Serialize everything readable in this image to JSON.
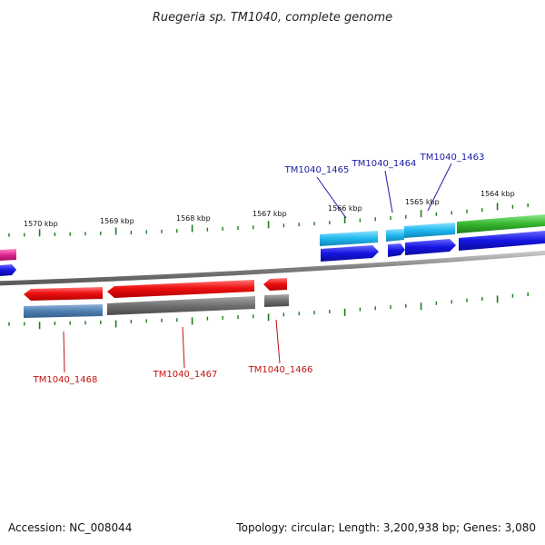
{
  "title": "Ruegeria sp. TM1040, complete genome",
  "scale_labels": [
    "1570 kbp",
    "1569 kbp",
    "1568 kbp",
    "1567 kbp",
    "1566 kbp",
    "1565 kbp",
    "1564 kbp"
  ],
  "top_gene_labels": [
    "TM1040_1465",
    "TM1040_1464",
    "TM1040_1463"
  ],
  "bottom_gene_labels": [
    "TM1040_1468",
    "TM1040_1467",
    "TM1040_1466"
  ],
  "footer": {
    "accession": "Accession: NC_008044",
    "topology": "Topology: circular; Length: 3,200,938 bp; Genes: 3,080"
  },
  "colors": {
    "backbone": "#7d7d7d",
    "tick": "#1e7a1e",
    "red": "#ee1111",
    "gray": "#6f6f6f",
    "steelblue": "#4f7fb2",
    "blue": "#1414e0",
    "cyan": "#1fb8ee",
    "green": "#36b62e",
    "magenta": "#e0268e"
  }
}
